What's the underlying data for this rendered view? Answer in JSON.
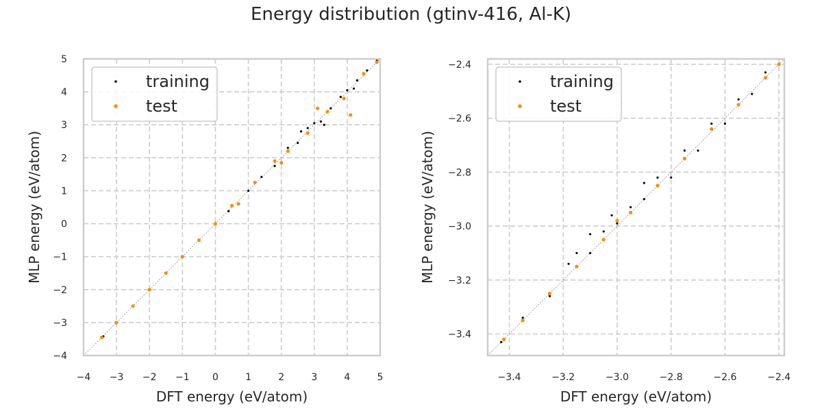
{
  "figure": {
    "title": "Energy distribution (gtinv-416, Al-K)"
  },
  "colors": {
    "training": "#000000",
    "test": "#ff8c00",
    "grid": "#cccccc",
    "frame": "#cccccc",
    "diagonal": "#888888"
  },
  "chart_data": [
    {
      "type": "scatter",
      "xlabel": "DFT energy (eV/atom)",
      "ylabel": "MLP energy (eV/atom)",
      "xlim": [
        -4,
        5
      ],
      "ylim": [
        -4,
        5
      ],
      "xticks": [
        -4,
        -3,
        -2,
        -1,
        0,
        1,
        2,
        3,
        4,
        5
      ],
      "yticks": [
        -4,
        -3,
        -2,
        -1,
        0,
        1,
        2,
        3,
        4,
        5
      ],
      "tick_labels_x": [
        "−4",
        "−3",
        "−2",
        "−1",
        "0",
        "1",
        "2",
        "3",
        "4",
        "5"
      ],
      "tick_labels_y": [
        "−4",
        "−3",
        "−2",
        "−1",
        "0",
        "1",
        "2",
        "3",
        "4",
        "5"
      ],
      "grid": true,
      "legend_position": "top-left",
      "reference_line": "y = x",
      "series": [
        {
          "name": "training",
          "color": "#000000",
          "points": [
            [
              -3.4,
              -3.42
            ],
            [
              -3.0,
              -3.0
            ],
            [
              -2.0,
              -2.01
            ],
            [
              -1.0,
              -1.0
            ],
            [
              0.0,
              0.0
            ],
            [
              0.4,
              0.38
            ],
            [
              1.0,
              1.0
            ],
            [
              1.4,
              1.42
            ],
            [
              1.8,
              1.75
            ],
            [
              2.2,
              2.3
            ],
            [
              2.5,
              2.45
            ],
            [
              2.8,
              2.9
            ],
            [
              3.0,
              3.05
            ],
            [
              3.2,
              3.1
            ],
            [
              3.5,
              3.5
            ],
            [
              3.8,
              3.85
            ],
            [
              4.0,
              4.05
            ],
            [
              4.3,
              4.35
            ],
            [
              4.6,
              4.65
            ],
            [
              4.9,
              4.95
            ],
            [
              2.6,
              2.8
            ],
            [
              3.3,
              3.0
            ],
            [
              4.2,
              4.1
            ]
          ]
        },
        {
          "name": "test",
          "color": "#ff8c00",
          "points": [
            [
              -3.45,
              -3.45
            ],
            [
              -3.0,
              -3.0
            ],
            [
              -2.5,
              -2.5
            ],
            [
              -2.0,
              -2.0
            ],
            [
              -1.5,
              -1.5
            ],
            [
              -1.0,
              -1.0
            ],
            [
              -0.5,
              -0.5
            ],
            [
              0.0,
              0.0
            ],
            [
              0.5,
              0.55
            ],
            [
              0.7,
              0.6
            ],
            [
              1.2,
              1.25
            ],
            [
              1.8,
              1.9
            ],
            [
              2.0,
              1.85
            ],
            [
              2.2,
              2.2
            ],
            [
              2.8,
              2.75
            ],
            [
              3.1,
              3.5
            ],
            [
              3.4,
              3.4
            ],
            [
              3.9,
              3.8
            ],
            [
              4.1,
              3.3
            ],
            [
              4.5,
              4.55
            ],
            [
              4.9,
              4.9
            ]
          ]
        }
      ]
    },
    {
      "type": "scatter",
      "xlabel": "DFT energy (eV/atom)",
      "ylabel": "MLP energy (eV/atom)",
      "xlim": [
        -3.48,
        -2.38
      ],
      "ylim": [
        -3.48,
        -2.38
      ],
      "xticks": [
        -3.4,
        -3.2,
        -3.0,
        -2.8,
        -2.6,
        -2.4
      ],
      "yticks": [
        -3.4,
        -3.2,
        -3.0,
        -2.8,
        -2.6,
        -2.4
      ],
      "tick_labels_x": [
        "−3.4",
        "−3.2",
        "−3.0",
        "−2.8",
        "−2.6",
        "−2.4"
      ],
      "tick_labels_y": [
        "−3.4",
        "−3.2",
        "−3.0",
        "−2.8",
        "−2.6",
        "−2.4"
      ],
      "grid": true,
      "legend_position": "top-left",
      "reference_line": "y = x",
      "series": [
        {
          "name": "training",
          "color": "#000000",
          "points": [
            [
              -3.43,
              -3.43
            ],
            [
              -3.35,
              -3.34
            ],
            [
              -3.25,
              -3.26
            ],
            [
              -3.18,
              -3.14
            ],
            [
              -3.15,
              -3.1
            ],
            [
              -3.1,
              -3.1
            ],
            [
              -3.05,
              -3.02
            ],
            [
              -3.02,
              -2.96
            ],
            [
              -3.0,
              -2.99
            ],
            [
              -2.95,
              -2.93
            ],
            [
              -2.9,
              -2.9
            ],
            [
              -2.85,
              -2.82
            ],
            [
              -2.8,
              -2.82
            ],
            [
              -2.75,
              -2.72
            ],
            [
              -2.7,
              -2.72
            ],
            [
              -2.65,
              -2.62
            ],
            [
              -2.6,
              -2.62
            ],
            [
              -2.55,
              -2.53
            ],
            [
              -2.5,
              -2.51
            ],
            [
              -2.45,
              -2.43
            ],
            [
              -2.4,
              -2.4
            ],
            [
              -3.1,
              -3.03
            ],
            [
              -2.9,
              -2.84
            ]
          ]
        },
        {
          "name": "test",
          "color": "#ff8c00",
          "points": [
            [
              -3.42,
              -3.42
            ],
            [
              -3.35,
              -3.35
            ],
            [
              -3.25,
              -3.25
            ],
            [
              -3.15,
              -3.15
            ],
            [
              -3.05,
              -3.05
            ],
            [
              -3.0,
              -2.98
            ],
            [
              -2.95,
              -2.95
            ],
            [
              -2.85,
              -2.85
            ],
            [
              -2.75,
              -2.75
            ],
            [
              -2.65,
              -2.64
            ],
            [
              -2.55,
              -2.55
            ],
            [
              -2.45,
              -2.45
            ],
            [
              -2.4,
              -2.4
            ]
          ]
        }
      ]
    }
  ]
}
